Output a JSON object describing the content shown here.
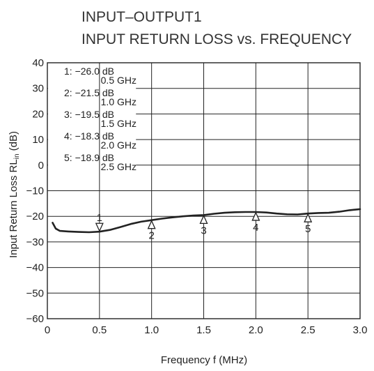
{
  "chart_data": {
    "type": "line",
    "title_lines": [
      "INPUT–OUTPUT1",
      "INPUT RETURN LOSS vs. FREQUENCY"
    ],
    "xlabel": "Frequency  f (MHz)",
    "ylabel_main": "Input Return Loss  RL",
    "ylabel_sub": "in",
    "ylabel_unit": " (dB)",
    "xlim": [
      0,
      3.0
    ],
    "ylim": [
      -60,
      40
    ],
    "xticks": [
      0,
      0.5,
      1.0,
      1.5,
      2.0,
      2.5,
      3.0
    ],
    "xtick_labels": [
      "0",
      "0.5",
      "1.0",
      "1.5",
      "2.0",
      "2.5",
      "3.0"
    ],
    "yticks": [
      40,
      30,
      20,
      10,
      0,
      -10,
      -20,
      -30,
      -40,
      -50,
      -60
    ],
    "ytick_labels": [
      "40",
      "30",
      "20",
      "10",
      "0",
      "−10",
      "−20",
      "−30",
      "−40",
      "−50",
      "−60"
    ],
    "grid": true,
    "series": [
      {
        "x": [
          0.05,
          0.08,
          0.12,
          0.2,
          0.3,
          0.4,
          0.5,
          0.6,
          0.7,
          0.8,
          0.9,
          1.0,
          1.1,
          1.2,
          1.3,
          1.4,
          1.5,
          1.6,
          1.7,
          1.8,
          1.9,
          2.0,
          2.1,
          2.2,
          2.3,
          2.4,
          2.5,
          2.6,
          2.7,
          2.8,
          2.9,
          3.0
        ],
        "y": [
          -22.5,
          -24.8,
          -25.7,
          -25.9,
          -26.1,
          -26.2,
          -26.0,
          -25.3,
          -24.2,
          -23.0,
          -22.1,
          -21.5,
          -20.9,
          -20.4,
          -20.0,
          -19.7,
          -19.5,
          -19.0,
          -18.6,
          -18.4,
          -18.3,
          -18.3,
          -18.5,
          -18.9,
          -19.2,
          -19.3,
          -18.9,
          -18.7,
          -18.6,
          -18.2,
          -17.6,
          -17.2
        ]
      }
    ],
    "markers": [
      {
        "label": "1",
        "x": 0.5,
        "y": -26.0,
        "direction": "down"
      },
      {
        "label": "2",
        "x": 1.0,
        "y": -21.5,
        "direction": "up"
      },
      {
        "label": "3",
        "x": 1.5,
        "y": -19.5,
        "direction": "up"
      },
      {
        "label": "4",
        "x": 2.0,
        "y": -18.3,
        "direction": "up"
      },
      {
        "label": "5",
        "x": 2.5,
        "y": -18.9,
        "direction": "up"
      }
    ],
    "legend_box": [
      {
        "line1": "1: −26.0 dB",
        "line2": "0.5 GHz"
      },
      {
        "line1": "2: −21.5 dB",
        "line2": "1.0 GHz"
      },
      {
        "line1": "3: −19.5 dB",
        "line2": "1.5 GHz"
      },
      {
        "line1": "4: −18.3 dB",
        "line2": "2.0 GHz"
      },
      {
        "line1": "5: −18.9 dB",
        "line2": "2.5 GHz"
      }
    ],
    "legend_placement": "top-left",
    "colors": {
      "line": "#222222",
      "grid": "#222222",
      "text": "#222222"
    }
  }
}
